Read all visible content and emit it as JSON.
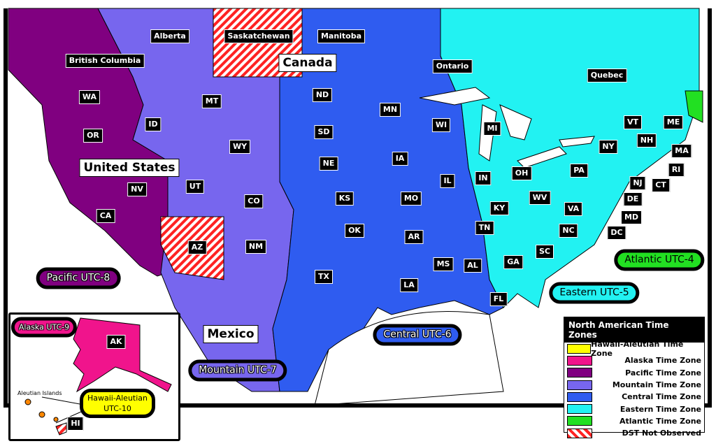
{
  "colors": {
    "pacific": "#800080",
    "mountain": "#7766ee",
    "central": "#2f5cf0",
    "eastern": "#22f2f2",
    "atlantic": "#22e022",
    "alaska": "#f0148c",
    "hawaii": "#ffff00",
    "dst": "#ff2222"
  },
  "regions": {
    "bc": "British Columbia",
    "alberta": "Alberta",
    "saskatchewan": "Saskatchewan",
    "manitoba": "Manitoba",
    "ontario": "Ontario",
    "quebec": "Quebec"
  },
  "countries": {
    "canada": "Canada",
    "us": "United States",
    "mexico": "Mexico"
  },
  "states": [
    "WA",
    "OR",
    "ID",
    "MT",
    "WY",
    "ND",
    "SD",
    "MN",
    "WI",
    "MI",
    "NY",
    "VT",
    "NH",
    "ME",
    "MA",
    "RI",
    "CT",
    "NJ",
    "DE",
    "MD",
    "DC",
    "PA",
    "OH",
    "IN",
    "IL",
    "IA",
    "NE",
    "UT",
    "NV",
    "CA",
    "CO",
    "KS",
    "MO",
    "KY",
    "WV",
    "VA",
    "TN",
    "NC",
    "SC",
    "AR",
    "OK",
    "NM",
    "AZ",
    "TX",
    "LA",
    "MS",
    "AL",
    "GA",
    "FL",
    "AK",
    "HI"
  ],
  "zones": {
    "pacific": "Pacific  UTC-8",
    "mountain": "Mountain  UTC-7",
    "central": "Central  UTC-6",
    "eastern": "Eastern  UTC-5",
    "atlantic": "Atlantic  UTC-4",
    "alaska": "Alaska  UTC-9",
    "hawaii_1": "Hawaii-Aleutian",
    "hawaii_2": "UTC-10"
  },
  "inset": {
    "aleutian": "Aleutian Islands"
  },
  "legend": {
    "title": "North American Time Zones",
    "items": [
      {
        "label": "Hawaii-Aleutian Time Zone",
        "color": "#ffff00"
      },
      {
        "label": "Alaska Time Zone",
        "color": "#f0148c"
      },
      {
        "label": "Pacific Time Zone",
        "color": "#800080"
      },
      {
        "label": "Mountain Time Zone",
        "color": "#7766ee"
      },
      {
        "label": "Central Time Zone",
        "color": "#2f5cf0"
      },
      {
        "label": "Eastern Time Zone",
        "color": "#22f2f2"
      },
      {
        "label": "Atlantic Time Zone",
        "color": "#22e022"
      },
      {
        "label": "DST Not Observed",
        "color": "stripes"
      }
    ]
  }
}
